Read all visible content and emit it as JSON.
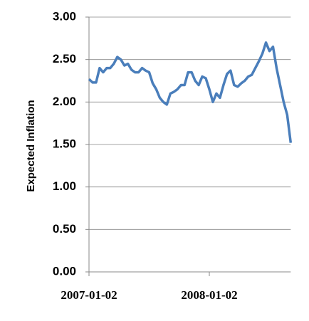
{
  "chart_data": {
    "type": "line",
    "y_label": "Expected Inflation",
    "categories": [
      "2007-01-02",
      null,
      null,
      null,
      null,
      null,
      null,
      null,
      null,
      null,
      null,
      null,
      null,
      null,
      null,
      null,
      null,
      null,
      null,
      null,
      null,
      null,
      null,
      null,
      null,
      null,
      null,
      null,
      null,
      null,
      null,
      null,
      null,
      null,
      "2008-01-02",
      null,
      null,
      null,
      null,
      null,
      null,
      null,
      null,
      null,
      null,
      null,
      null,
      null,
      null,
      null,
      null,
      null,
      null,
      null,
      null,
      null,
      null,
      null
    ],
    "series": [
      {
        "name": "Expected Inflation",
        "color": "#4a7ebb",
        "values": [
          2.27,
          2.23,
          2.23,
          2.4,
          2.35,
          2.4,
          2.4,
          2.45,
          2.53,
          2.5,
          2.43,
          2.45,
          2.38,
          2.35,
          2.35,
          2.4,
          2.37,
          2.35,
          2.22,
          2.15,
          2.05,
          2.0,
          1.97,
          2.1,
          2.12,
          2.15,
          2.2,
          2.2,
          2.35,
          2.35,
          2.25,
          2.2,
          2.3,
          2.28,
          2.15,
          2.0,
          2.1,
          2.05,
          2.2,
          2.33,
          2.37,
          2.2,
          2.18,
          2.22,
          2.25,
          2.3,
          2.32,
          2.4,
          2.48,
          2.57,
          2.7,
          2.6,
          2.65,
          2.4,
          2.2,
          2.0,
          1.85,
          1.52
        ]
      }
    ],
    "ylim": [
      0,
      3
    ],
    "yticks": [
      {
        "value": 0,
        "label": "0.00"
      },
      {
        "value": 0.5,
        "label": "0.50"
      },
      {
        "value": 1,
        "label": "1.00"
      },
      {
        "value": 1.5,
        "label": "1.50"
      },
      {
        "value": 2,
        "label": "2.00"
      },
      {
        "value": 2.5,
        "label": "2.50"
      },
      {
        "value": 3,
        "label": "3.00"
      }
    ],
    "grid": true
  }
}
